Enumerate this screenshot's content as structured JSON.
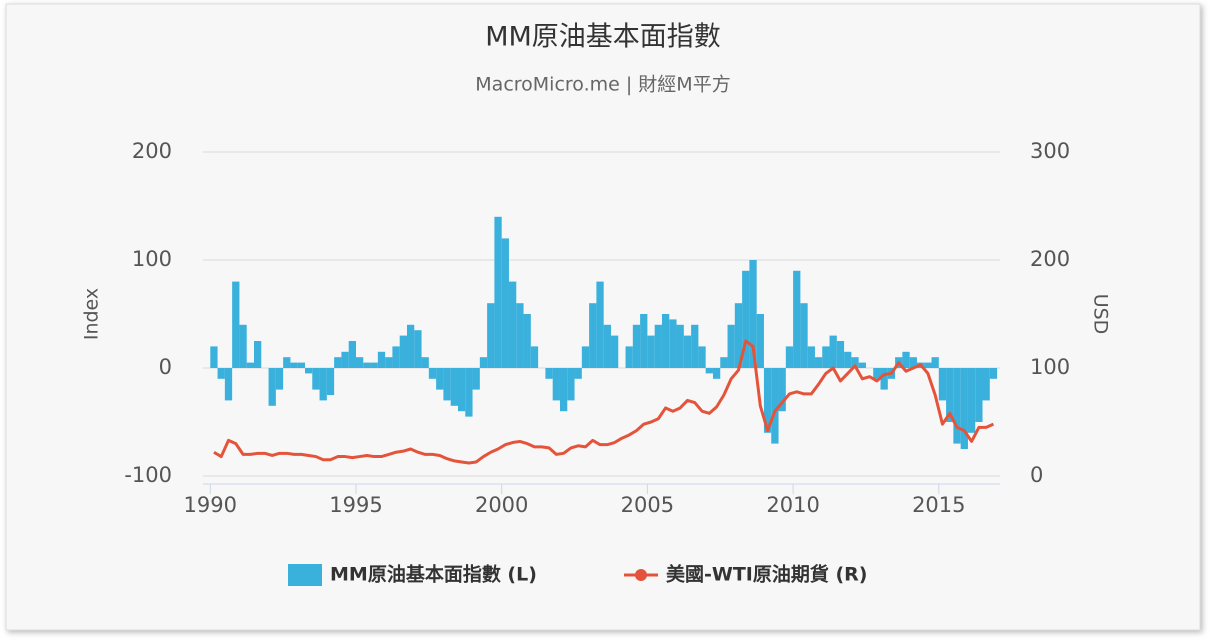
{
  "chart_data": {
    "type": "bar-line",
    "title": "MM原油基本面指數",
    "subtitle": "MacroMicro.me | 財經M平方",
    "y_label": "Index",
    "y2_label": "USD",
    "x": [
      1990,
      1990.25,
      1990.5,
      1990.75,
      1991,
      1991.25,
      1991.5,
      1991.75,
      1992,
      1992.25,
      1992.5,
      1992.75,
      1993,
      1993.25,
      1993.5,
      1993.75,
      1994,
      1994.25,
      1994.5,
      1994.75,
      1995,
      1995.25,
      1995.5,
      1995.75,
      1996,
      1996.25,
      1996.5,
      1996.75,
      1997,
      1997.25,
      1997.5,
      1997.75,
      1998,
      1998.25,
      1998.5,
      1998.75,
      1999,
      1999.25,
      1999.5,
      1999.75,
      2000,
      2000.25,
      2000.5,
      2000.75,
      2001,
      2001.25,
      2001.5,
      2001.75,
      2002,
      2002.25,
      2002.5,
      2002.75,
      2003,
      2003.25,
      2003.5,
      2003.75,
      2004,
      2004.25,
      2004.5,
      2004.75,
      2005,
      2005.25,
      2005.5,
      2005.75,
      2006,
      2006.25,
      2006.5,
      2006.75,
      2007,
      2007.25,
      2007.5,
      2007.75,
      2008,
      2008.25,
      2008.5,
      2008.75,
      2009,
      2009.25,
      2009.5,
      2009.75,
      2010,
      2010.25,
      2010.5,
      2010.75,
      2011,
      2011.25,
      2011.5,
      2011.75,
      2012,
      2012.25,
      2012.5,
      2012.75,
      2013,
      2013.25,
      2013.5,
      2013.75,
      2014,
      2014.25,
      2014.5,
      2014.75,
      2015,
      2015.25,
      2015.5,
      2015.75,
      2016,
      2016.25,
      2016.5,
      2016.75
    ],
    "series": [
      {
        "name": "MM原油基本面指數 (L)",
        "color": "#3ab0dc",
        "kind": "bar",
        "axis": "y",
        "values": [
          20,
          -10,
          -30,
          80,
          40,
          5,
          25,
          0,
          -35,
          -20,
          10,
          5,
          5,
          -5,
          -20,
          -30,
          -25,
          10,
          15,
          25,
          10,
          5,
          5,
          15,
          10,
          20,
          30,
          40,
          35,
          10,
          -10,
          -20,
          -30,
          -35,
          -40,
          -45,
          -20,
          10,
          60,
          140,
          120,
          80,
          60,
          50,
          20,
          0,
          -10,
          -30,
          -40,
          -30,
          -10,
          20,
          60,
          80,
          40,
          30,
          0,
          20,
          40,
          50,
          30,
          40,
          50,
          45,
          40,
          30,
          40,
          20,
          -5,
          -10,
          10,
          40,
          60,
          90,
          100,
          50,
          -60,
          -70,
          -40,
          20,
          90,
          60,
          20,
          10,
          20,
          30,
          25,
          15,
          10,
          5,
          0,
          -10,
          -20,
          -10,
          10,
          15,
          10,
          5,
          5,
          10,
          -30,
          -50,
          -70,
          -75,
          -60,
          -50,
          -30,
          -10
        ]
      },
      {
        "name": "美國-WTI原油期貨 (R)",
        "color": "#e4543a",
        "kind": "line",
        "axis": "y2",
        "values": [
          22,
          18,
          33,
          30,
          20,
          20,
          21,
          21,
          19,
          21,
          21,
          20,
          20,
          19,
          18,
          15,
          15,
          18,
          18,
          17,
          18,
          19,
          18,
          18,
          20,
          22,
          23,
          25,
          22,
          20,
          20,
          19,
          16,
          14,
          13,
          12,
          13,
          18,
          22,
          25,
          29,
          31,
          32,
          30,
          27,
          27,
          26,
          20,
          21,
          26,
          28,
          27,
          33,
          29,
          29,
          31,
          35,
          38,
          42,
          48,
          50,
          53,
          63,
          60,
          63,
          70,
          68,
          60,
          58,
          64,
          75,
          90,
          98,
          125,
          120,
          65,
          42,
          60,
          68,
          76,
          78,
          76,
          76,
          85,
          95,
          100,
          88,
          95,
          102,
          90,
          92,
          88,
          94,
          95,
          105,
          97,
          100,
          103,
          95,
          75,
          48,
          58,
          45,
          42,
          32,
          45,
          45,
          48
        ]
      }
    ],
    "xlim": [
      1989.75,
      2017.1
    ],
    "xticks": [
      1990,
      1995,
      2000,
      2005,
      2010,
      2015
    ],
    "ylim": [
      -100,
      200
    ],
    "yticks": [
      -100,
      0,
      100,
      200
    ],
    "y2lim": [
      0,
      300
    ],
    "y2ticks": [
      0,
      100,
      200,
      300
    ],
    "grid": true,
    "legend": "bottom"
  }
}
